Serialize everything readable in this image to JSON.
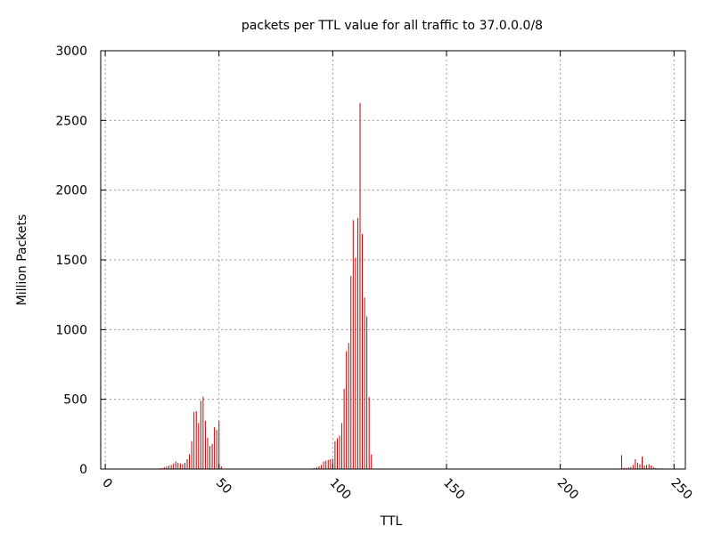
{
  "chart_data": {
    "type": "bar",
    "title": "packets per TTL value for all traffic to 37.0.0.0/8",
    "xlabel": "TTL",
    "ylabel": "Million Packets",
    "xlim": [
      -2,
      255
    ],
    "ylim": [
      0,
      3000
    ],
    "x_ticks": [
      0,
      50,
      100,
      150,
      200,
      250
    ],
    "y_ticks": [
      0,
      500,
      1000,
      1500,
      2000,
      2500,
      3000
    ],
    "x_tick_labels": [
      "0",
      "50",
      "100",
      "150",
      "200",
      "250"
    ],
    "y_tick_labels": [
      "0",
      "500",
      "1000",
      "1500",
      "2000",
      "2500",
      "3000"
    ],
    "grid": true,
    "bar_color": "#cc0000",
    "x": [
      24,
      25,
      26,
      27,
      28,
      29,
      30,
      31,
      32,
      33,
      34,
      35,
      36,
      37,
      38,
      39,
      40,
      41,
      42,
      43,
      44,
      45,
      46,
      47,
      48,
      49,
      50,
      51,
      91,
      92,
      93,
      94,
      95,
      96,
      97,
      98,
      99,
      100,
      101,
      102,
      103,
      104,
      105,
      106,
      107,
      108,
      109,
      110,
      111,
      112,
      113,
      114,
      115,
      116,
      117,
      227,
      228,
      229,
      230,
      231,
      232,
      233,
      234,
      235,
      236,
      237,
      238,
      239,
      240,
      241,
      242,
      243,
      244,
      245
    ],
    "values": [
      5,
      8,
      12,
      20,
      25,
      30,
      40,
      55,
      45,
      40,
      35,
      45,
      70,
      105,
      200,
      410,
      415,
      330,
      490,
      520,
      345,
      225,
      165,
      180,
      300,
      280,
      345,
      20,
      5,
      8,
      12,
      20,
      30,
      55,
      60,
      65,
      70,
      75,
      200,
      220,
      240,
      330,
      575,
      845,
      905,
      1385,
      1785,
      1515,
      1800,
      2625,
      1685,
      1230,
      1095,
      515,
      105,
      100,
      10,
      8,
      12,
      15,
      30,
      70,
      45,
      35,
      90,
      25,
      30,
      35,
      25,
      15,
      8,
      5,
      5,
      5
    ]
  }
}
